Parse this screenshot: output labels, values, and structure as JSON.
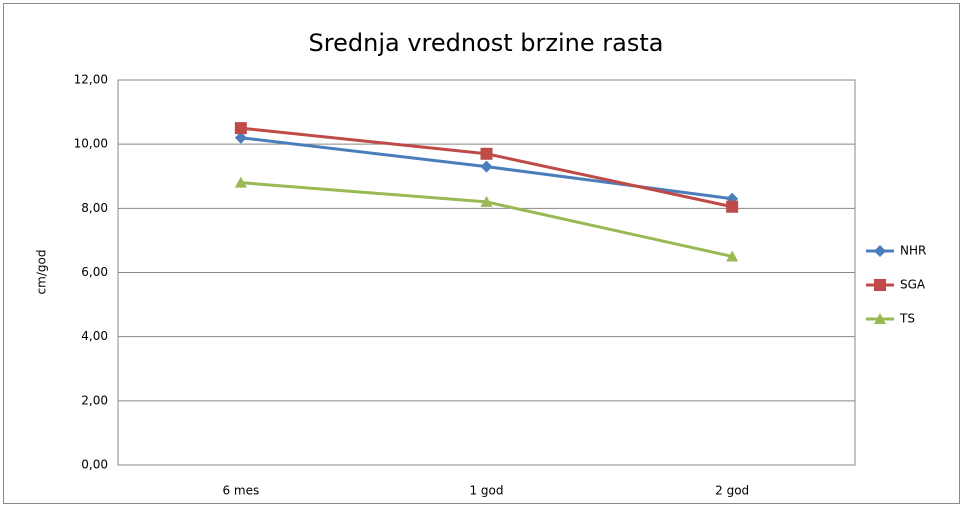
{
  "chart_data": {
    "type": "line",
    "title": "Srednja vrednost brzine rasta",
    "y_label": "cm/god",
    "categories": [
      "6 mes",
      "1 god",
      "2 god"
    ],
    "series": [
      {
        "name": "NHR",
        "color": "#4a7ebb",
        "marker": "diamond",
        "values": [
          10.2,
          9.3,
          8.3
        ]
      },
      {
        "name": "SGA",
        "color": "#be4b48",
        "marker": "square",
        "values": [
          10.5,
          9.7,
          8.05
        ]
      },
      {
        "name": "TS",
        "color": "#98b954",
        "marker": "triangle",
        "values": [
          8.8,
          8.2,
          6.5
        ]
      }
    ],
    "ylim": [
      0,
      12
    ],
    "yticks": [
      {
        "value": 0,
        "label": "0,00"
      },
      {
        "value": 2,
        "label": "2,00"
      },
      {
        "value": 4,
        "label": "4,00"
      },
      {
        "value": 6,
        "label": "6,00"
      },
      {
        "value": 8,
        "label": "8,00"
      },
      {
        "value": 10,
        "label": "10,00"
      },
      {
        "value": 12,
        "label": "12,00"
      }
    ],
    "grid": true,
    "legend": "right"
  }
}
